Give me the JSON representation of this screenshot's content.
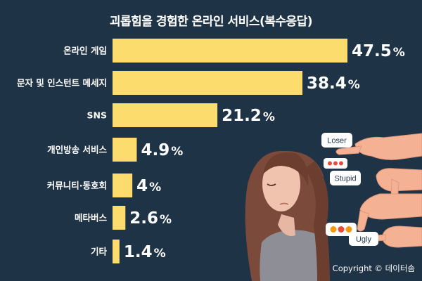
{
  "chart_data": {
    "type": "bar",
    "orientation": "horizontal",
    "title": "괴롭힘을 경험한 온라인 서비스(복수응답)",
    "categories": [
      "온라인 게임",
      "문자 및 인스턴트 메세지",
      "SNS",
      "개인방송 서비스",
      "커뮤니티·동호회",
      "메타버스",
      "기타"
    ],
    "values": [
      47.5,
      38.4,
      21.2,
      4.9,
      4,
      2.6,
      1.4
    ],
    "value_labels": [
      "47.5",
      "38.4",
      "21.2",
      "4.9",
      "4",
      "2.6",
      "1.4"
    ],
    "unit": "%",
    "xlim": [
      0,
      50
    ],
    "grid": false,
    "bar_color": "#fbdc6c"
  },
  "illustration": {
    "bubbles": [
      "Loser",
      "Stupid",
      "Ugly"
    ],
    "emoji_colors": [
      "#e74c3c",
      "#f39c12"
    ]
  },
  "copyright": "Copyright © 데이터솜"
}
